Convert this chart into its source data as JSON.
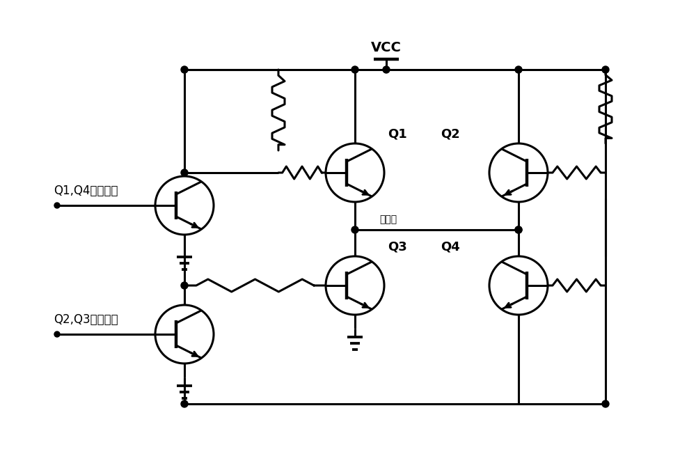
{
  "background_color": "#ffffff",
  "line_color": "#000000",
  "line_width": 2.2,
  "vcc_label": "VCC",
  "q1_label": "Q1",
  "q2_label": "Q2",
  "q3_label": "Q3",
  "q4_label": "Q4",
  "ctrl14_label": "Q1,Q4控制信号",
  "ctrl23_label": "Q2,Q3控制信号",
  "output_label": "输出端",
  "font_size_label": 12,
  "font_size_vcc": 14,
  "font_size_q": 13
}
